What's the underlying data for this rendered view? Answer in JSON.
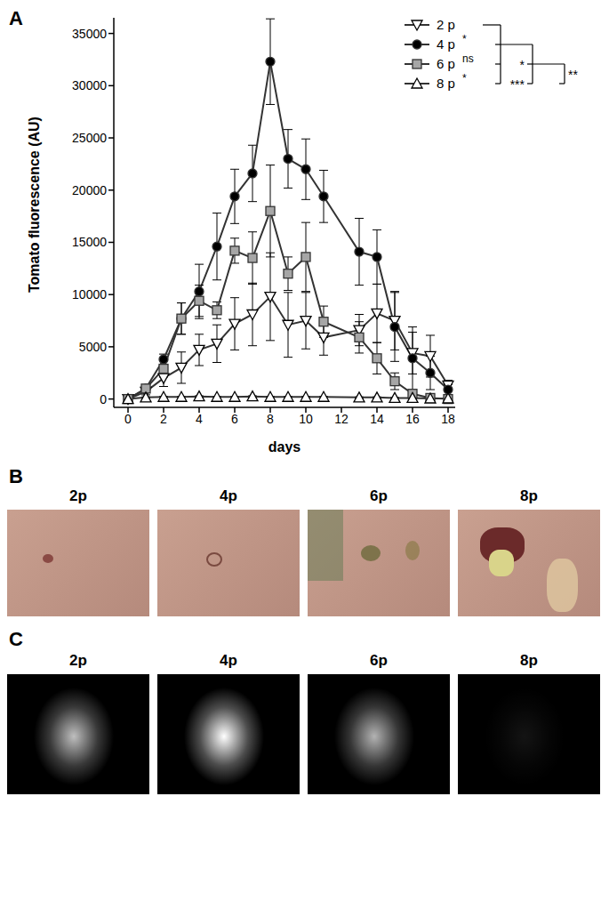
{
  "chart_label": "A",
  "chart_data": {
    "type": "line",
    "x_label": "days",
    "y_label": "Tomato fluorescence (AU)",
    "x": [
      0,
      1,
      2,
      3,
      4,
      5,
      6,
      7,
      8,
      9,
      10,
      11,
      13,
      14,
      15,
      16,
      17,
      18
    ],
    "xlim": [
      -0.8,
      18.4
    ],
    "xticks": [
      0,
      2,
      4,
      6,
      8,
      10,
      12,
      14,
      16,
      18
    ],
    "ylim": [
      -800,
      36500
    ],
    "yticks": [
      0,
      5000,
      10000,
      15000,
      20000,
      25000,
      30000,
      35000
    ],
    "legend": "top-right",
    "series": [
      {
        "name": "2 p",
        "color": "#000000",
        "marker": "open_triangle_down",
        "values": [
          0,
          700,
          2000,
          3000,
          4700,
          5300,
          7200,
          8100,
          9800,
          7100,
          7500,
          5900,
          6600,
          8200,
          7500,
          4400,
          4100,
          1300
        ],
        "errors": [
          0,
          300,
          800,
          1500,
          1500,
          1800,
          2500,
          3000,
          4200,
          3100,
          2700,
          1700,
          1500,
          2800,
          2800,
          2000,
          2000,
          500
        ]
      },
      {
        "name": "4 p",
        "color": "#000000",
        "marker": "circle",
        "values": [
          0,
          1000,
          3800,
          7700,
          10300,
          14600,
          19400,
          21600,
          32300,
          23000,
          22000,
          19400,
          14100,
          13600,
          6900,
          3900,
          2500,
          900
        ],
        "errors": [
          0,
          300,
          500,
          1500,
          2600,
          3200,
          2600,
          2700,
          4100,
          2800,
          2900,
          2500,
          3200,
          2600,
          3300,
          3000,
          1600,
          500
        ]
      },
      {
        "name": "6 p",
        "color": "#a6a6a6",
        "marker": "square",
        "values": [
          0,
          1000,
          2900,
          7700,
          9400,
          8500,
          14200,
          13500,
          18000,
          12000,
          13600,
          7400,
          5900,
          3900,
          1700,
          500,
          100,
          0
        ],
        "errors": [
          0,
          300,
          800,
          1500,
          1500,
          800,
          1200,
          2500,
          4400,
          1600,
          3300,
          1500,
          1500,
          1500,
          800,
          300,
          100,
          0
        ]
      },
      {
        "name": "8 p",
        "color": "#000000",
        "marker": "open_triangle_up",
        "values": [
          0,
          150,
          200,
          200,
          250,
          200,
          200,
          250,
          200,
          200,
          200,
          200,
          150,
          150,
          100,
          100,
          50,
          50
        ],
        "errors": [
          0,
          50,
          50,
          50,
          50,
          50,
          50,
          50,
          50,
          50,
          50,
          50,
          50,
          50,
          50,
          50,
          50,
          50
        ]
      }
    ],
    "brackets": [
      {
        "between": [
          "2 p",
          "4 p"
        ],
        "label": "*"
      },
      {
        "between": [
          "2 p",
          "6 p"
        ],
        "label": "ns"
      },
      {
        "between": [
          "2 p",
          "8 p"
        ],
        "label": "*"
      },
      {
        "between": [
          "4 p",
          "6 p"
        ],
        "label": "*"
      },
      {
        "between": [
          "4 p",
          "8 p"
        ],
        "label": "***"
      },
      {
        "between": [
          "6 p",
          "8 p"
        ],
        "label": "**"
      }
    ]
  },
  "photo_panels": [
    {
      "label": "B",
      "images": [
        "2p",
        "4p",
        "6p",
        "8p"
      ]
    },
    {
      "label": "C",
      "images": [
        "2p",
        "4p",
        "6p",
        "8p"
      ]
    }
  ]
}
